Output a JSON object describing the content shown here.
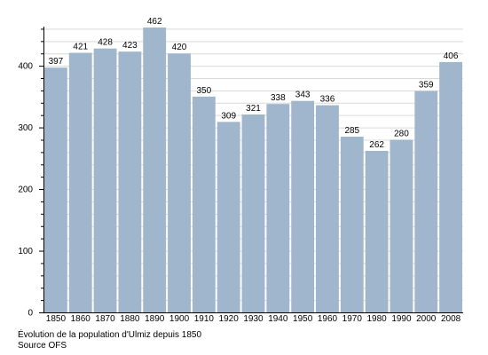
{
  "chart_data": {
    "type": "bar",
    "categories": [
      "1850",
      "1860",
      "1870",
      "1880",
      "1890",
      "1900",
      "1910",
      "1920",
      "1930",
      "1940",
      "1950",
      "1960",
      "1970",
      "1980",
      "1990",
      "2000",
      "2008"
    ],
    "values": [
      397,
      421,
      428,
      423,
      462,
      420,
      350,
      309,
      321,
      338,
      343,
      336,
      285,
      262,
      280,
      359,
      406
    ],
    "yticks": [
      0,
      100,
      200,
      300,
      400
    ],
    "ylim": [
      0,
      475
    ],
    "grid": true,
    "colors": {
      "bar": "#9fb6cd",
      "grid": "#d9d9d9"
    }
  },
  "caption": {
    "line1": "Évolution de la population d'Ulmiz depuis 1850",
    "line2": "Source OFS"
  }
}
